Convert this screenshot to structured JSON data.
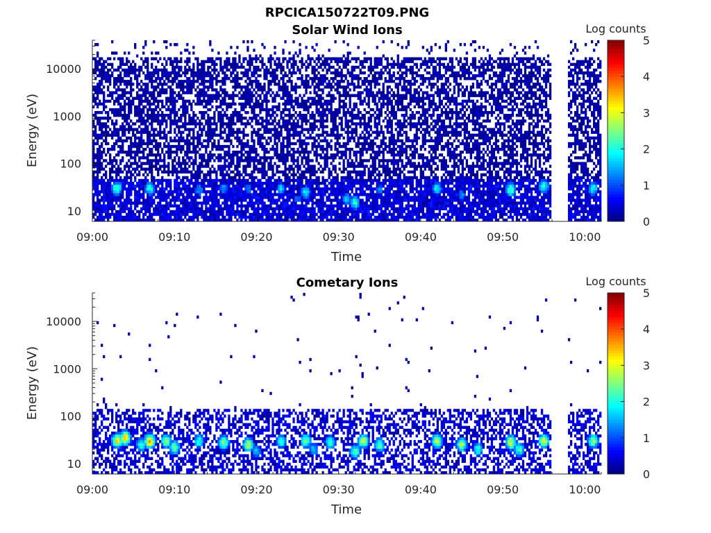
{
  "figure": {
    "title": "RPCICA150722T09.PNG"
  },
  "colormap": {
    "name": "jet",
    "stops": [
      "#00007f",
      "#0000ff",
      "#007fff",
      "#00ffff",
      "#7fff7f",
      "#ffff00",
      "#ff7f00",
      "#ff0000",
      "#7f0000"
    ]
  },
  "chart_data": [
    {
      "type": "heatmap",
      "title": "Solar Wind Ions",
      "xlabel": "Time",
      "ylabel": "Energy (eV)",
      "x_range": [
        "09:00",
        "10:02"
      ],
      "x_ticks": [
        "09:00",
        "09:10",
        "09:20",
        "09:30",
        "09:40",
        "09:50",
        "10:00"
      ],
      "y_scale": "log",
      "y_range": [
        6,
        40000
      ],
      "y_ticks": [
        {
          "value": 10,
          "label": "10"
        },
        {
          "value": 100,
          "label": "100"
        },
        {
          "value": 1000,
          "label": "1000"
        },
        {
          "value": 10000,
          "label": "10000"
        }
      ],
      "colorbar": {
        "label": "Log counts",
        "range": [
          0,
          5
        ],
        "ticks": [
          "0",
          "1",
          "2",
          "3",
          "4",
          "5"
        ]
      },
      "data_gaps": [
        [
          "09:56",
          "09:58"
        ]
      ],
      "pattern": {
        "background_fill": 0.62,
        "background_level": 0.35,
        "high_energy_fill": 0.1,
        "low_band_fill": 0.85,
        "low_band_max_eV": 50,
        "hotspots": [
          {
            "time": "09:03",
            "energy": 30,
            "level": 2.3
          },
          {
            "time": "09:07",
            "energy": 30,
            "level": 2.0
          },
          {
            "time": "09:13",
            "energy": 28,
            "level": 1.4
          },
          {
            "time": "09:16",
            "energy": 30,
            "level": 1.4
          },
          {
            "time": "09:19",
            "energy": 30,
            "level": 1.3
          },
          {
            "time": "09:23",
            "energy": 30,
            "level": 1.6
          },
          {
            "time": "09:25",
            "energy": 18,
            "level": 1.2
          },
          {
            "time": "09:26",
            "energy": 25,
            "level": 1.8
          },
          {
            "time": "09:31",
            "energy": 18,
            "level": 1.6
          },
          {
            "time": "09:32",
            "energy": 15,
            "level": 2.0
          },
          {
            "time": "09:35",
            "energy": 28,
            "level": 1.3
          },
          {
            "time": "09:42",
            "energy": 30,
            "level": 1.8
          },
          {
            "time": "09:45",
            "energy": 22,
            "level": 1.3
          },
          {
            "time": "09:51",
            "energy": 28,
            "level": 2.3
          },
          {
            "time": "09:55",
            "energy": 33,
            "level": 2.1
          },
          {
            "time": "10:01",
            "energy": 30,
            "level": 2.0
          }
        ]
      }
    },
    {
      "type": "heatmap",
      "title": "Cometary Ions",
      "xlabel": "Time",
      "ylabel": "Energy (eV)",
      "x_range": [
        "09:00",
        "10:02"
      ],
      "x_ticks": [
        "09:00",
        "09:10",
        "09:20",
        "09:30",
        "09:40",
        "09:50",
        "10:00"
      ],
      "y_scale": "log",
      "y_range": [
        6,
        40000
      ],
      "y_ticks": [
        {
          "value": 10,
          "label": "10"
        },
        {
          "value": 100,
          "label": "100"
        },
        {
          "value": 1000,
          "label": "1000"
        },
        {
          "value": 10000,
          "label": "10000"
        }
      ],
      "colorbar": {
        "label": "Log counts",
        "range": [
          0,
          5
        ],
        "ticks": [
          "0",
          "1",
          "2",
          "3",
          "4",
          "5"
        ]
      },
      "data_gaps": [
        [
          "09:56",
          "09:58"
        ]
      ],
      "pattern": {
        "background_fill": 0.01,
        "background_level": 0.3,
        "high_energy_fill": 0.005,
        "low_band_fill": 0.5,
        "low_band_max_eV": 140,
        "hotspots": [
          {
            "time": "09:03",
            "energy": 30,
            "level": 3.1
          },
          {
            "time": "09:04",
            "energy": 35,
            "level": 3.3
          },
          {
            "time": "09:06",
            "energy": 25,
            "level": 2.2
          },
          {
            "time": "09:07",
            "energy": 30,
            "level": 3.4
          },
          {
            "time": "09:09",
            "energy": 30,
            "level": 2.6
          },
          {
            "time": "09:10",
            "energy": 22,
            "level": 2.5
          },
          {
            "time": "09:13",
            "energy": 30,
            "level": 2.1
          },
          {
            "time": "09:16",
            "energy": 28,
            "level": 2.6
          },
          {
            "time": "09:19",
            "energy": 25,
            "level": 2.8
          },
          {
            "time": "09:20",
            "energy": 18,
            "level": 1.6
          },
          {
            "time": "09:23",
            "energy": 30,
            "level": 2.2
          },
          {
            "time": "09:26",
            "energy": 30,
            "level": 2.5
          },
          {
            "time": "09:27",
            "energy": 20,
            "level": 1.7
          },
          {
            "time": "09:29",
            "energy": 28,
            "level": 2.3
          },
          {
            "time": "09:32",
            "energy": 18,
            "level": 2.4
          },
          {
            "time": "09:33",
            "energy": 30,
            "level": 2.8
          },
          {
            "time": "09:35",
            "energy": 25,
            "level": 2.4
          },
          {
            "time": "09:42",
            "energy": 30,
            "level": 2.8
          },
          {
            "time": "09:45",
            "energy": 25,
            "level": 2.7
          },
          {
            "time": "09:47",
            "energy": 20,
            "level": 2.1
          },
          {
            "time": "09:51",
            "energy": 28,
            "level": 3.0
          },
          {
            "time": "09:52",
            "energy": 20,
            "level": 2.2
          },
          {
            "time": "09:55",
            "energy": 30,
            "level": 2.9
          },
          {
            "time": "10:01",
            "energy": 30,
            "level": 2.6
          }
        ]
      }
    }
  ]
}
